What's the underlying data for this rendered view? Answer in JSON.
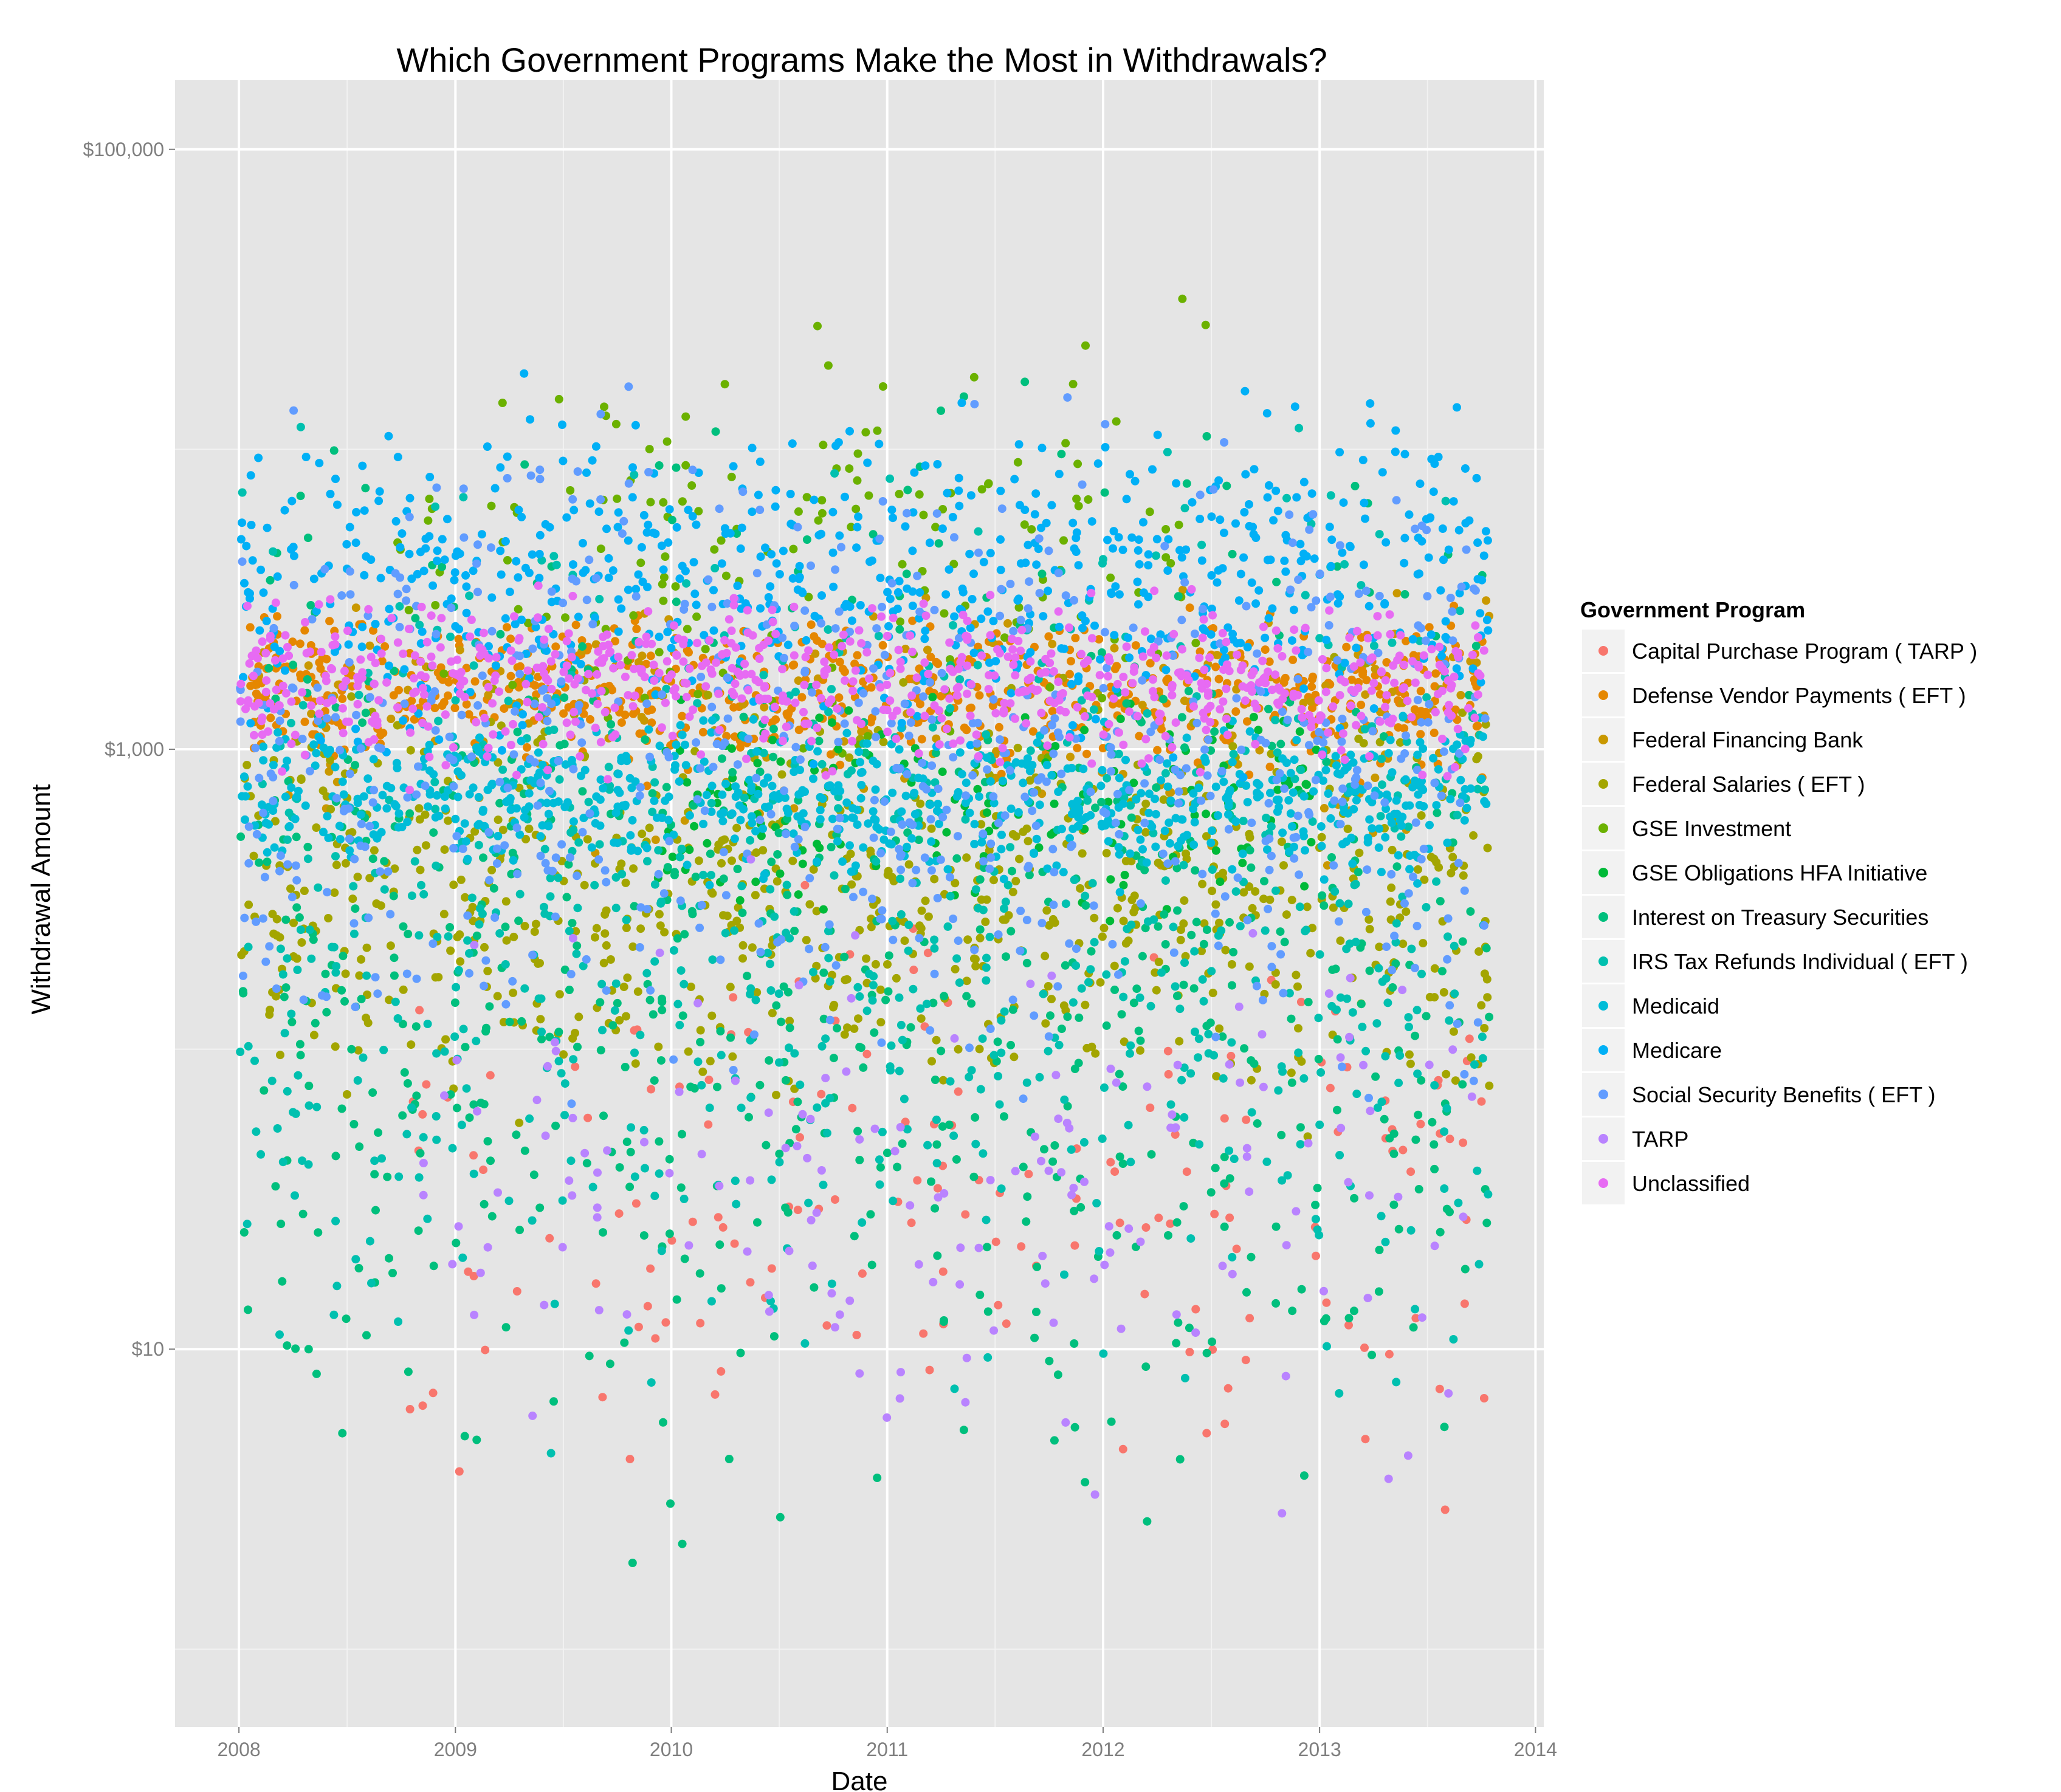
{
  "chart_data": {
    "type": "scatter",
    "title": "Which Government Programs Make the Most in Withdrawals?",
    "xlabel": "Date",
    "ylabel": "Withdrawal Amount",
    "x_ticks": [
      "2008",
      "2009",
      "2010",
      "2011",
      "2012",
      "2013",
      "2014"
    ],
    "x_range": [
      "2007-09-15",
      "2014-01-15"
    ],
    "y_scale": "log10",
    "y_range": [
      0.55,
      170000
    ],
    "y_ticks": [
      {
        "value": 10,
        "label": "$10"
      },
      {
        "value": 1000,
        "label": "$1,000"
      },
      {
        "value": 100000,
        "label": "$100,000"
      }
    ],
    "y_minor_gridlines": [
      1,
      100,
      10000
    ],
    "panel_background": "#e5e5e5",
    "grid": true,
    "legend": {
      "title": "Government Program",
      "position": "right"
    },
    "series": [
      {
        "name": "Capital Purchase Program ( TARP )",
        "color": "#F8766D",
        "y_band": [
          2,
          600
        ],
        "frequency": "sporadic",
        "active": [
          "2008-10-15",
          "2013-10-15"
        ]
      },
      {
        "name": "Defense Vendor Payments ( EFT )",
        "color": "#E58700",
        "y_band": [
          700,
          3500
        ],
        "frequency": "daily",
        "active": [
          "2008-01-02",
          "2013-10-15"
        ]
      },
      {
        "name": "Federal Financing Bank",
        "color": "#C99800",
        "y_band": [
          300,
          5000
        ],
        "frequency": "sporadic",
        "active": [
          "2008-01-02",
          "2013-10-15"
        ]
      },
      {
        "name": "Federal Salaries ( EFT )",
        "color": "#A3A500",
        "y_band": [
          40,
          2800
        ],
        "frequency": "daily",
        "active": [
          "2008-01-02",
          "2013-10-15"
        ]
      },
      {
        "name": "GSE Investment",
        "color": "#6BB100",
        "y_band": [
          500,
          45000
        ],
        "frequency": "sporadic",
        "active": [
          "2008-09-15",
          "2012-06-30"
        ]
      },
      {
        "name": "GSE Obligations HFA Initiative",
        "color": "#00BA38",
        "y_band": [
          200,
          2000
        ],
        "frequency": "sporadic",
        "active": [
          "2009-12-01",
          "2012-12-31"
        ]
      },
      {
        "name": "Interest on Treasury Securities",
        "color": "#00BF7D",
        "y_band": [
          1,
          30000
        ],
        "frequency": "daily",
        "active": [
          "2008-01-02",
          "2013-10-15"
        ]
      },
      {
        "name": "IRS Tax Refunds Individual ( EFT )",
        "color": "#00C0AF",
        "y_band": [
          3,
          25000
        ],
        "frequency": "daily",
        "active": [
          "2008-01-02",
          "2013-10-15"
        ]
      },
      {
        "name": "Medicaid",
        "color": "#00BCD8",
        "y_band": [
          300,
          1600
        ],
        "frequency": "daily",
        "active": [
          "2008-01-02",
          "2013-10-15"
        ]
      },
      {
        "name": "Medicare",
        "color": "#00B0F6",
        "y_band": [
          700,
          20000
        ],
        "frequency": "daily",
        "active": [
          "2008-01-02",
          "2013-10-15"
        ]
      },
      {
        "name": "Social Security Benefits ( EFT )",
        "color": "#619CFF",
        "y_band": [
          40,
          23000
        ],
        "frequency": "daily",
        "active": [
          "2008-01-02",
          "2013-10-15"
        ]
      },
      {
        "name": "TARP",
        "color": "#B983FF",
        "y_band": [
          2,
          800
        ],
        "frequency": "sporadic",
        "active": [
          "2008-10-15",
          "2013-10-15"
        ]
      },
      {
        "name": "Unclassified",
        "color": "#E76BF3",
        "y_band": [
          700,
          4000
        ],
        "frequency": "daily",
        "active": [
          "2008-01-02",
          "2013-10-15"
        ]
      }
    ]
  }
}
